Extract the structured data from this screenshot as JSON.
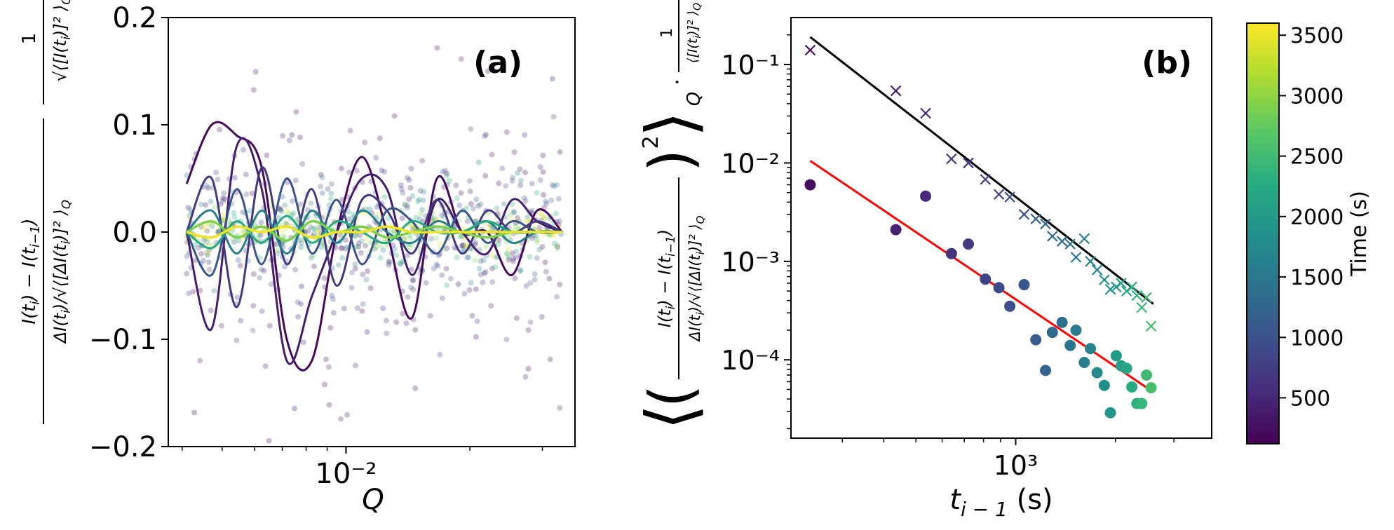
{
  "chart_data": [
    {
      "panel": "(a)",
      "type": "scatter",
      "xscale": "log",
      "xlim": [
        0.0037,
        0.036
      ],
      "ylim": [
        -0.2,
        0.2
      ],
      "xlabel": "Q",
      "ylabel": "\\frac{I(t_i)-I(t_{i-1})}{\\Delta I(t_i)/\\sqrt{\\langle[\\Delta I(t_i)]^2\\rangle_Q}} \\frac{1}{\\sqrt{\\langle[I(t_i)]^2\\rangle_Q}}",
      "yticks": [
        "0.2",
        "0.1",
        "0.0",
        "−0.1",
        "−0.2"
      ],
      "xticks": [
        "10⁻²"
      ],
      "colormap": "viridis",
      "series_description": "faint scatter points and smoothed curves per time step; early times (purple) wide spread, late times (yellow) near zero",
      "curves": [
        {
          "time": 200,
          "y": [
            0.045,
            0.1,
            0.09,
            0.06,
            -0.1,
            -0.12,
            0.0,
            0.07,
            0.0,
            -0.08,
            0.05,
            0.0,
            0.0,
            -0.04,
            0.02,
            0.0
          ]
        },
        {
          "time": 400,
          "y": [
            0.0,
            -0.09,
            0.08,
            0.04,
            -0.12,
            -0.06,
            0.0,
            0.05,
            0.04,
            -0.04,
            0.03,
            0.0,
            -0.02,
            0.03,
            0.01,
            0.0
          ]
        },
        {
          "time": 700,
          "y": [
            0.0,
            0.05,
            -0.07,
            0.06,
            -0.03,
            0.04,
            -0.05,
            0.03,
            0.02,
            -0.02,
            0.03,
            -0.02,
            0.02,
            0.0,
            0.01,
            0.0
          ]
        },
        {
          "time": 1000,
          "y": [
            0.0,
            -0.04,
            0.04,
            -0.03,
            0.05,
            -0.02,
            0.03,
            -0.03,
            0.02,
            0.01,
            -0.02,
            0.02,
            -0.01,
            0.01,
            0.0,
            0.0
          ]
        },
        {
          "time": 1600,
          "y": [
            0.0,
            0.02,
            -0.02,
            0.02,
            -0.02,
            0.02,
            -0.01,
            0.02,
            0.0,
            -0.01,
            0.01,
            0.0,
            0.01,
            -0.01,
            0.0,
            0.0
          ]
        },
        {
          "time": 2200,
          "y": [
            0.0,
            -0.015,
            0.01,
            -0.01,
            0.015,
            -0.01,
            0.01,
            0.0,
            -0.01,
            0.01,
            0.0,
            0.0,
            0.01,
            0.0,
            0.0,
            0.0
          ]
        },
        {
          "time": 2900,
          "y": [
            0.0,
            0.01,
            -0.005,
            0.005,
            -0.008,
            0.01,
            0.0,
            0.005,
            -0.005,
            0.0,
            0.005,
            0.0,
            -0.005,
            0.0,
            0.0,
            0.0
          ]
        },
        {
          "time": 3500,
          "y": [
            0.0,
            -0.005,
            0.005,
            0.0,
            0.005,
            -0.005,
            0.0,
            0.0,
            0.005,
            0.0,
            0.0,
            0.0,
            0.0,
            0.0,
            0.0,
            0.0
          ]
        }
      ]
    },
    {
      "panel": "(b)",
      "type": "scatter",
      "xscale": "log",
      "yscale": "log",
      "xlim": [
        210,
        3900
      ],
      "ylim": [
        1.6e-05,
        0.3
      ],
      "xlabel": "t_{i-1} (s)",
      "ylabel": "\\left\\langle \\left( \\frac{I(t_i)-I(t_{i-1})}{\\Delta I(t_i)/\\sqrt{\\langle[\\Delta I(t_i)]^2\\rangle_Q}} \\right)^2 \\right\\rangle_Q \\cdot \\frac{1}{\\langle[I(t_i)]^2\\rangle_Q}",
      "xticks": [
        "10³"
      ],
      "yticks": [
        "10⁻¹",
        "10⁻²",
        "10⁻³",
        "10⁻⁴"
      ],
      "crosses": {
        "marker": "x",
        "x": [
          240,
          435,
          535,
          640,
          720,
          810,
          890,
          960,
          1060,
          1150,
          1230,
          1290,
          1380,
          1460,
          1520,
          1610,
          1680,
          1760,
          1850,
          1930,
          2010,
          2080,
          2160,
          2240,
          2320,
          2400,
          2480,
          2560
        ],
        "y": [
          0.14,
          0.054,
          0.032,
          0.011,
          0.01,
          0.0068,
          0.0048,
          0.0045,
          0.003,
          0.0027,
          0.0024,
          0.0018,
          0.0016,
          0.0015,
          0.0011,
          0.0017,
          0.001,
          0.00082,
          0.00065,
          0.00052,
          0.00055,
          0.0006,
          0.0005,
          0.00055,
          0.00045,
          0.00034,
          0.00043,
          0.00022
        ],
        "time": [
          240,
          435,
          535,
          640,
          720,
          810,
          890,
          960,
          1060,
          1150,
          1230,
          1290,
          1380,
          1460,
          1520,
          1610,
          1680,
          1760,
          1850,
          1930,
          2010,
          2080,
          2160,
          2240,
          2320,
          2400,
          2480,
          2560
        ]
      },
      "circles": {
        "marker": "o",
        "x": [
          240,
          435,
          535,
          640,
          720,
          810,
          890,
          960,
          1060,
          1150,
          1230,
          1290,
          1380,
          1460,
          1520,
          1610,
          1680,
          1760,
          1850,
          1930,
          2010,
          2080,
          2160,
          2240,
          2320,
          2400,
          2480,
          2560
        ],
        "y": [
          0.006,
          0.0021,
          0.0046,
          0.0012,
          0.0015,
          0.00066,
          0.00054,
          0.00035,
          0.00058,
          0.00016,
          7.8e-05,
          0.00019,
          0.00024,
          0.00014,
          0.0002,
          9.4e-05,
          0.00013,
          7.4e-05,
          5.5e-05,
          2.9e-05,
          0.00011,
          8.7e-05,
          8.2e-05,
          5.3e-05,
          3.6e-05,
          3.6e-05,
          7e-05,
          5.2e-05
        ],
        "time": [
          240,
          435,
          535,
          640,
          720,
          810,
          890,
          960,
          1060,
          1150,
          1230,
          1290,
          1380,
          1460,
          1520,
          1610,
          1680,
          1760,
          1850,
          1930,
          2010,
          2080,
          2160,
          2240,
          2320,
          2400,
          2480,
          2560
        ]
      },
      "fit_lines": [
        {
          "color": "#000000",
          "x": [
            240,
            2600
          ],
          "y": [
            0.19,
            0.00037
          ]
        },
        {
          "color": "#ff0000",
          "x": [
            240,
            2600
          ],
          "y": [
            0.0105,
            4.7e-05
          ]
        }
      ]
    }
  ],
  "colorbar": {
    "label": "Time (s)",
    "range": [
      120,
      3600
    ],
    "ticks": [
      500,
      1000,
      1500,
      2000,
      2500,
      3000,
      3500
    ],
    "colormap": "viridis"
  }
}
